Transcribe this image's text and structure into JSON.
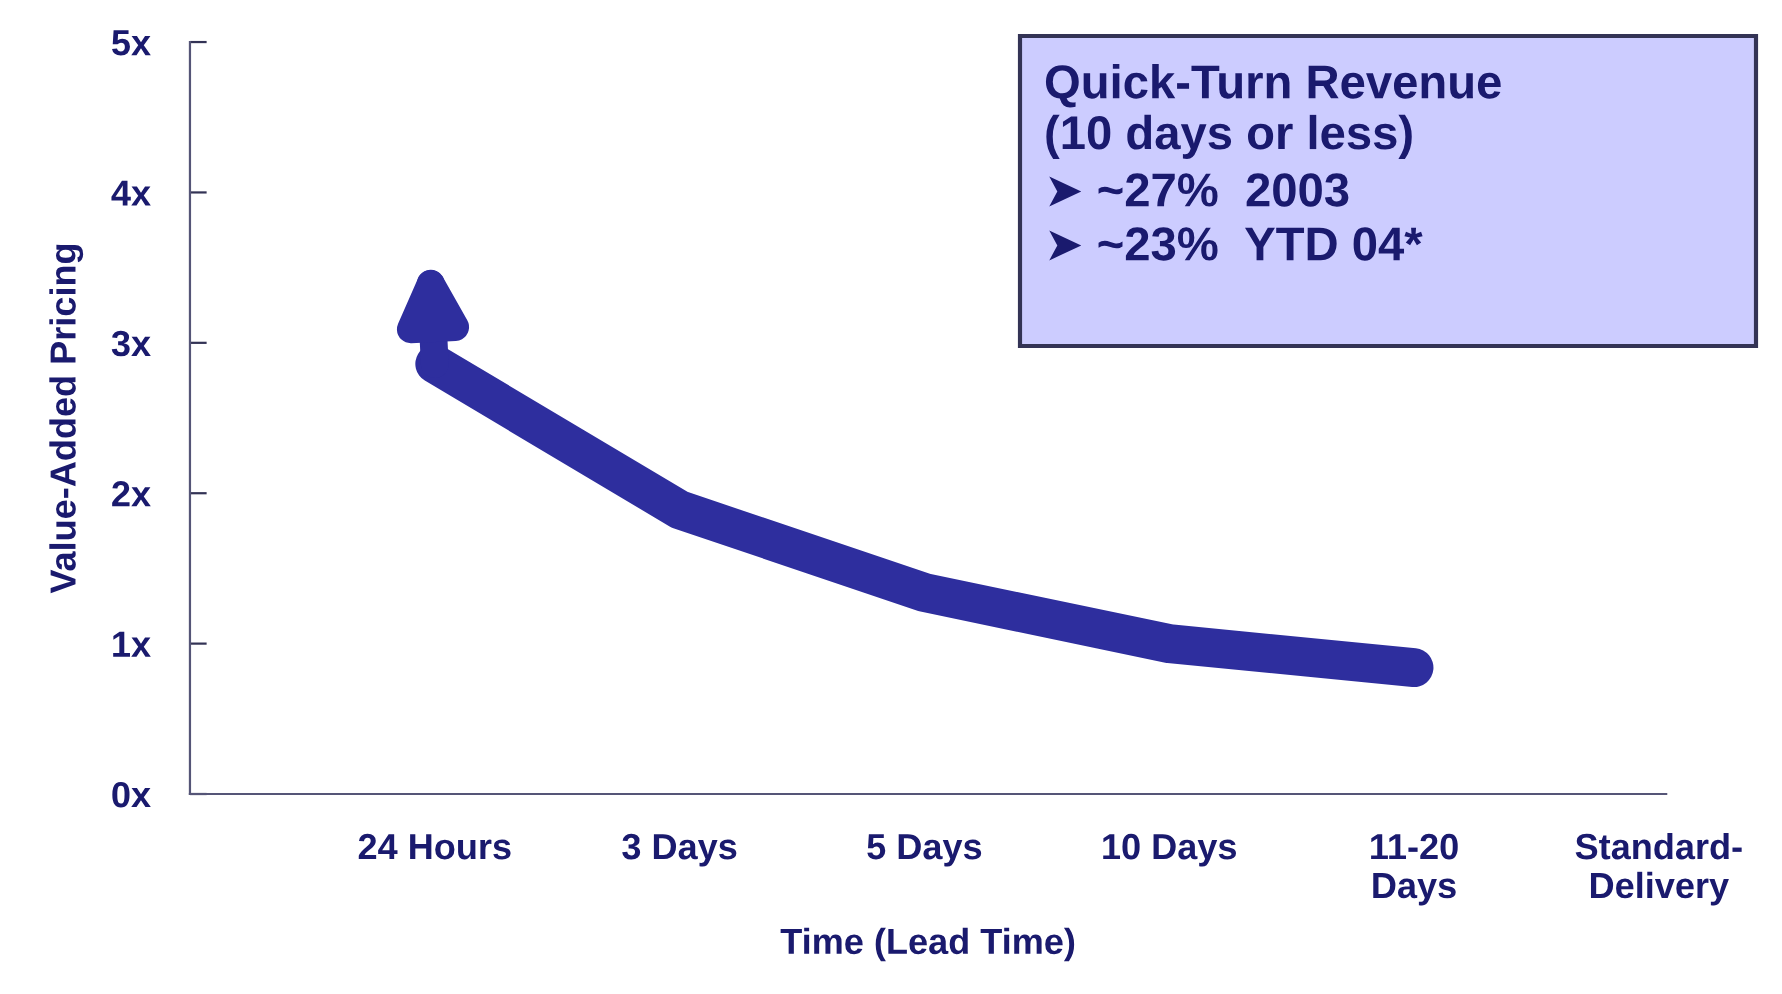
{
  "chart_data": {
    "type": "line",
    "xlabel": "Time (Lead Time)",
    "ylabel": "Value-Added Pricing",
    "categories": [
      "24 Hours",
      "3 Days",
      "5 Days",
      "10 Days",
      "11-20\nDays",
      "Standard-\nDelivery"
    ],
    "ylim": [
      0,
      5
    ],
    "yticks": [
      {
        "value": 0,
        "label": "0x"
      },
      {
        "value": 1,
        "label": "1x"
      },
      {
        "value": 2,
        "label": "2x"
      },
      {
        "value": 3,
        "label": "3x"
      },
      {
        "value": 4,
        "label": "4x"
      },
      {
        "value": 5,
        "label": "5x"
      }
    ],
    "series": [
      {
        "color": "#2e2e9e",
        "values": [
          2.86,
          1.89,
          1.34,
          1.0,
          0.84,
          null
        ]
      }
    ],
    "line_style": "solid",
    "grid": false,
    "annotations": [
      "Quick-Turn Revenue\n(10 days or less)",
      "➤ ~27%  2003",
      "➤ ~23%  YTD 04*"
    ]
  }
}
